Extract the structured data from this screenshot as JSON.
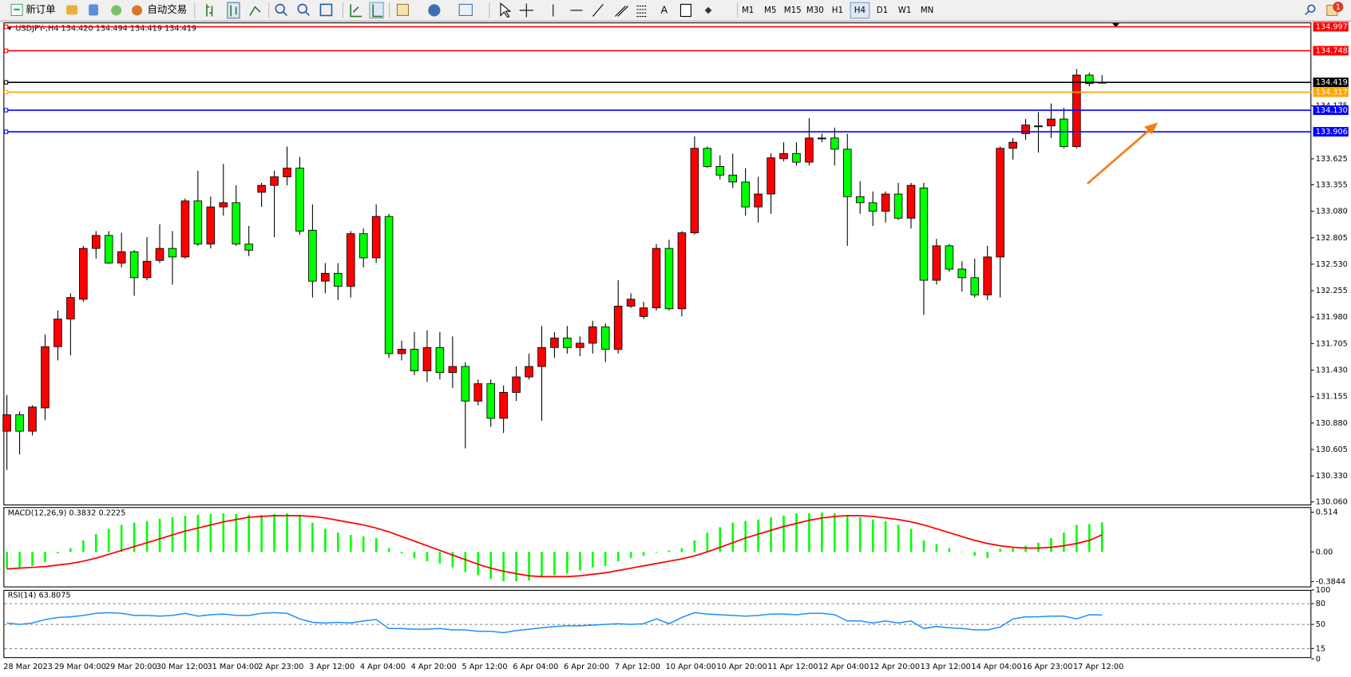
{
  "toolbar": {
    "new_order": "新订单",
    "auto_trading": "自动交易",
    "text_tool": "A",
    "timeframes": [
      "M1",
      "M5",
      "M15",
      "M30",
      "H1",
      "H4",
      "D1",
      "W1",
      "MN"
    ],
    "active_timeframe": "H4",
    "notifications": 1
  },
  "chart_data": [
    {
      "type": "candlestick",
      "title": "USDJPY-,H4  134.420 134.494 134.419 134.419",
      "categories": [
        "28 Mar 2023",
        null,
        null,
        null,
        "29 Mar 04:00",
        null,
        null,
        null,
        "29 Mar 20:00",
        null,
        null,
        null,
        "30 Mar 12:00",
        null,
        null,
        null,
        "31 Mar 04:00",
        null,
        null,
        null,
        "2 Apr 23:00",
        null,
        null,
        null,
        "3 Apr 12:00",
        null,
        null,
        null,
        "4 Apr 04:00",
        null,
        null,
        null,
        "4 Apr 20:00",
        null,
        null,
        null,
        "5 Apr 12:00",
        null,
        null,
        null,
        "6 Apr 04:00",
        null,
        null,
        null,
        "6 Apr 20:00",
        null,
        null,
        null,
        "7 Apr 12:00",
        null,
        null,
        null,
        "10 Apr 04:00",
        null,
        null,
        null,
        "10 Apr 20:00",
        null,
        null,
        null,
        "11 Apr 12:00",
        null,
        null,
        null,
        "12 Apr 04:00",
        null,
        null,
        null,
        "12 Apr 20:00",
        null,
        null,
        null,
        "13 Apr 12:00",
        null,
        null,
        null,
        "14 Apr 04:00",
        null,
        null,
        null,
        "16 Apr 23:00",
        null,
        null,
        null,
        "17 Apr 12:00",
        null,
        null
      ],
      "open": [
        130.795,
        130.965,
        130.795,
        131.037,
        131.673,
        131.96,
        132.166,
        132.694,
        132.829,
        132.542,
        132.659,
        132.39,
        132.569,
        132.694,
        132.605,
        133.187,
        132.739,
        133.125,
        133.169,
        132.739,
        133.277,
        133.349,
        133.438,
        133.528,
        132.883,
        132.354,
        132.435,
        132.3,
        132.847,
        132.596,
        133.026,
        131.601,
        131.646,
        131.422,
        131.664,
        131.404,
        131.467,
        131.108,
        131.288,
        130.929,
        131.198,
        131.359,
        131.467,
        131.664,
        131.763,
        131.664,
        131.709,
        131.879,
        131.646,
        132.094,
        131.987,
        132.076,
        132.694,
        132.067,
        132.856,
        133.734,
        133.546,
        133.456,
        133.384,
        133.125,
        133.259,
        133.626,
        133.68,
        133.59,
        133.841,
        133.841,
        133.725,
        133.232,
        133.169,
        133.08,
        133.259,
        133.008,
        133.322,
        132.363,
        132.721,
        132.479,
        132.39,
        132.211,
        132.605,
        133.734,
        133.886,
        133.967,
        133.967,
        134.038,
        133.752,
        134.495,
        134.42
      ],
      "high": [
        131.171,
        131.001,
        131.064,
        131.798,
        132.049,
        132.228,
        132.721,
        132.874,
        132.874,
        132.856,
        132.676,
        132.811,
        132.945,
        132.874,
        133.214,
        133.501,
        133.232,
        133.573,
        133.349,
        132.927,
        133.375,
        133.501,
        133.752,
        133.644,
        133.151,
        132.542,
        132.542,
        132.874,
        132.901,
        133.151,
        133.053,
        131.736,
        131.825,
        131.843,
        131.825,
        131.78,
        131.512,
        131.332,
        131.332,
        131.27,
        131.467,
        131.601,
        131.888,
        131.825,
        131.888,
        131.78,
        131.942,
        131.915,
        132.363,
        132.228,
        132.139,
        132.739,
        132.784,
        132.874,
        133.859,
        133.752,
        133.662,
        133.68,
        133.528,
        133.438,
        133.68,
        133.797,
        133.797,
        134.047,
        133.886,
        133.949,
        133.886,
        133.393,
        133.286,
        133.286,
        133.375,
        133.375,
        133.375,
        132.793,
        132.739,
        132.56,
        132.587,
        132.721,
        133.752,
        133.841,
        134.038,
        134.11,
        134.2,
        134.155,
        134.558,
        134.522,
        134.494
      ],
      "low": [
        130.392,
        130.553,
        130.75,
        130.911,
        131.53,
        131.583,
        132.139,
        132.587,
        132.533,
        132.497,
        132.202,
        132.363,
        132.542,
        132.318,
        132.587,
        132.721,
        132.694,
        133.035,
        132.721,
        132.614,
        133.125,
        132.811,
        133.349,
        132.838,
        132.184,
        132.228,
        132.157,
        132.184,
        132.497,
        132.542,
        131.556,
        131.53,
        131.377,
        131.306,
        131.332,
        131.243,
        130.616,
        131.064,
        130.84,
        130.777,
        131.108,
        131.332,
        130.902,
        131.556,
        131.601,
        131.574,
        131.601,
        131.512,
        131.601,
        132.076,
        131.96,
        132.049,
        132.049,
        131.987,
        132.838,
        133.528,
        133.411,
        133.322,
        133.035,
        132.963,
        133.053,
        133.599,
        133.555,
        133.555,
        133.797,
        133.555,
        132.721,
        133.053,
        132.927,
        132.963,
        132.99,
        132.901,
        132.004,
        132.318,
        132.452,
        132.246,
        132.184,
        132.157,
        132.184,
        133.617,
        133.823,
        133.689,
        133.841,
        133.734,
        133.734,
        134.379,
        134.419
      ],
      "close": [
        130.965,
        130.795,
        131.046,
        131.673,
        131.96,
        132.184,
        132.694,
        132.829,
        132.542,
        132.659,
        132.39,
        132.56,
        132.694,
        132.605,
        133.187,
        132.739,
        133.125,
        133.169,
        132.739,
        132.676,
        133.349,
        133.438,
        133.528,
        132.874,
        132.354,
        132.435,
        132.3,
        132.847,
        132.596,
        133.026,
        131.601,
        131.646,
        131.422,
        131.664,
        131.404,
        131.467,
        131.108,
        131.288,
        130.929,
        131.198,
        131.359,
        131.467,
        131.664,
        131.763,
        131.664,
        131.709,
        131.879,
        131.646,
        132.094,
        132.166,
        132.076,
        132.694,
        132.067,
        132.856,
        133.734,
        133.546,
        133.456,
        133.384,
        133.125,
        133.259,
        133.635,
        133.68,
        133.59,
        133.841,
        133.841,
        133.725,
        133.232,
        133.169,
        133.08,
        133.259,
        133.008,
        133.349,
        132.363,
        132.721,
        132.479,
        132.39,
        132.211,
        132.605,
        133.734,
        133.797,
        133.976,
        133.967,
        134.038,
        133.752,
        134.495,
        134.406,
        134.419
      ],
      "up_color": "#ff0000",
      "down_color": "#00ff00",
      "flat_color": "#000000",
      "ylim": [
        130.033,
        135.033
      ],
      "yticks": [
        {
          "value": 130.06,
          "label": "130.060"
        },
        {
          "value": 130.33,
          "label": "130.330"
        },
        130.605,
        {
          "value": 130.88,
          "label": "130.880"
        },
        131.155,
        {
          "value": 131.43,
          "label": "131.430"
        },
        131.705,
        {
          "value": 131.98,
          "label": "131.980"
        },
        132.255,
        {
          "value": 132.53,
          "label": "132.530"
        },
        132.805,
        {
          "value": 133.08,
          "label": "133.080"
        },
        133.355,
        133.625,
        134.175
      ],
      "hlines": [
        {
          "value": 134.997,
          "color": "#ff0000"
        },
        {
          "value": 134.748,
          "color": "#ff0000"
        },
        {
          "value": 134.419,
          "color": "#000000"
        },
        {
          "value": 134.317,
          "color": "#ffa500"
        },
        {
          "value": 134.13,
          "label": "134.130",
          "color": "#0000ff"
        },
        {
          "value": 133.906,
          "color": "#0000ff"
        }
      ]
    },
    {
      "type": "combo",
      "title": "MACD(12,26,9) 0.3832 0.2225",
      "series": [
        {
          "style": "bar",
          "color": "#00ff00",
          "values": [
            -0.22,
            -0.2,
            -0.18,
            -0.13,
            -0.02,
            0.05,
            0.15,
            0.23,
            0.3,
            0.35,
            0.38,
            0.4,
            0.43,
            0.45,
            0.47,
            0.48,
            0.49,
            0.5,
            0.49,
            0.48,
            0.48,
            0.49,
            0.5,
            0.47,
            0.38,
            0.3,
            0.25,
            0.22,
            0.2,
            0.18,
            0.05,
            -0.02,
            -0.08,
            -0.12,
            -0.15,
            -0.2,
            -0.26,
            -0.3,
            -0.35,
            -0.38,
            -0.38,
            -0.37,
            -0.33,
            -0.3,
            -0.28,
            -0.24,
            -0.2,
            -0.18,
            -0.12,
            -0.08,
            -0.05,
            -0.01,
            0.02,
            0.05,
            0.15,
            0.25,
            0.32,
            0.38,
            0.4,
            0.42,
            0.45,
            0.47,
            0.5,
            0.5,
            0.51,
            0.5,
            0.47,
            0.45,
            0.42,
            0.4,
            0.35,
            0.3,
            0.15,
            0.1,
            0.05,
            0.0,
            -0.05,
            -0.08,
            0.04,
            0.05,
            0.08,
            0.12,
            0.18,
            0.25,
            0.35,
            0.36,
            0.3832
          ]
        },
        {
          "style": "line",
          "color": "#ff0000",
          "values": [
            -0.22,
            -0.21,
            -0.2,
            -0.19,
            -0.17,
            -0.15,
            -0.12,
            -0.08,
            -0.03,
            0.02,
            0.07,
            0.12,
            0.17,
            0.22,
            0.27,
            0.31,
            0.35,
            0.39,
            0.42,
            0.45,
            0.46,
            0.47,
            0.47,
            0.47,
            0.46,
            0.44,
            0.41,
            0.38,
            0.35,
            0.31,
            0.26,
            0.2,
            0.14,
            0.08,
            0.02,
            -0.04,
            -0.1,
            -0.16,
            -0.21,
            -0.25,
            -0.28,
            -0.31,
            -0.32,
            -0.32,
            -0.32,
            -0.31,
            -0.29,
            -0.27,
            -0.24,
            -0.21,
            -0.18,
            -0.15,
            -0.12,
            -0.09,
            -0.05,
            0.0,
            0.06,
            0.12,
            0.18,
            0.23,
            0.28,
            0.33,
            0.37,
            0.41,
            0.44,
            0.46,
            0.47,
            0.47,
            0.46,
            0.44,
            0.42,
            0.39,
            0.35,
            0.3,
            0.25,
            0.2,
            0.15,
            0.11,
            0.08,
            0.06,
            0.05,
            0.05,
            0.06,
            0.08,
            0.11,
            0.15,
            0.2225
          ]
        }
      ],
      "ylim": [
        -0.447,
        0.581
      ],
      "yticks": [
        -0.3844,
        {
          "value": 0,
          "label": "0.00"
        },
        0.514
      ]
    },
    {
      "type": "line",
      "title": "RSI(14) 63.8075",
      "color": "#1e90ff",
      "values": [
        52,
        50,
        52,
        57,
        60,
        61,
        63,
        66,
        67,
        66,
        63,
        63,
        62,
        63,
        66,
        62,
        64,
        65,
        63,
        63,
        66,
        67,
        66,
        58,
        53,
        52,
        53,
        52,
        55,
        57,
        44,
        44,
        43,
        43,
        44,
        42,
        42,
        40,
        40,
        38,
        41,
        43,
        45,
        47,
        48,
        48,
        49,
        50,
        51,
        50,
        51,
        58,
        51,
        60,
        67,
        65,
        64,
        63,
        62,
        63,
        65,
        65,
        64,
        66,
        66,
        64,
        55,
        55,
        52,
        55,
        52,
        55,
        44,
        47,
        45,
        44,
        42,
        42,
        46,
        58,
        61,
        61,
        62,
        62,
        58,
        64,
        63.8075
      ],
      "ylim": [
        0,
        100
      ],
      "yticks": [
        0,
        15,
        50,
        80,
        100
      ],
      "grid": true
    }
  ]
}
